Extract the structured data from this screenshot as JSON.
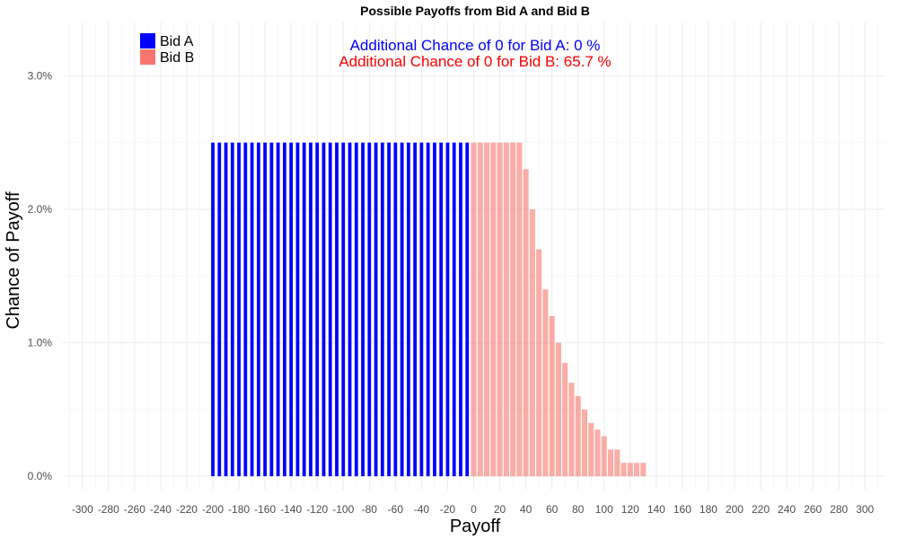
{
  "chart_data": {
    "type": "bar",
    "title": "Possible Payoffs from Bid A and Bid B",
    "xlabel": "Payoff",
    "ylabel": "Chance of Payoff",
    "xlim": [
      -315,
      315
    ],
    "ylim": [
      -0.001,
      0.034
    ],
    "x_ticks": [
      -300,
      -280,
      -260,
      -240,
      -220,
      -200,
      -180,
      -160,
      -140,
      -120,
      -100,
      -80,
      -60,
      -40,
      -20,
      0,
      20,
      40,
      60,
      80,
      100,
      120,
      140,
      160,
      180,
      200,
      220,
      240,
      260,
      280,
      300
    ],
    "y_ticks": [
      0.0,
      0.01,
      0.02,
      0.03
    ],
    "y_tick_labels": [
      "0.0%",
      "1.0%",
      "2.0%",
      "3.0%"
    ],
    "grid": true,
    "legend_position": "top-left",
    "series": [
      {
        "name": "Bid A",
        "color": "#0000ff",
        "x": [
          -200,
          -195,
          -190,
          -185,
          -180,
          -175,
          -170,
          -165,
          -160,
          -155,
          -150,
          -145,
          -140,
          -135,
          -130,
          -125,
          -120,
          -115,
          -110,
          -105,
          -100,
          -95,
          -90,
          -85,
          -80,
          -75,
          -70,
          -65,
          -60,
          -55,
          -50,
          -45,
          -40,
          -35,
          -30,
          -25,
          -20,
          -15,
          -10,
          -5
        ],
        "values": [
          0.025,
          0.025,
          0.025,
          0.025,
          0.025,
          0.025,
          0.025,
          0.025,
          0.025,
          0.025,
          0.025,
          0.025,
          0.025,
          0.025,
          0.025,
          0.025,
          0.025,
          0.025,
          0.025,
          0.025,
          0.025,
          0.025,
          0.025,
          0.025,
          0.025,
          0.025,
          0.025,
          0.025,
          0.025,
          0.025,
          0.025,
          0.025,
          0.025,
          0.025,
          0.025,
          0.025,
          0.025,
          0.025,
          0.025,
          0.025
        ]
      },
      {
        "name": "Bid B",
        "color": "#f8766d",
        "x": [
          0,
          5,
          10,
          15,
          20,
          25,
          30,
          35,
          40,
          45,
          50,
          55,
          60,
          65,
          70,
          75,
          80,
          85,
          90,
          95,
          100,
          105,
          110,
          115,
          120,
          125,
          130
        ],
        "values": [
          0.025,
          0.025,
          0.025,
          0.025,
          0.025,
          0.025,
          0.025,
          0.025,
          0.023,
          0.02,
          0.017,
          0.014,
          0.012,
          0.01,
          0.0085,
          0.007,
          0.006,
          0.005,
          0.004,
          0.0035,
          0.003,
          0.002,
          0.002,
          0.001,
          0.001,
          0.001,
          0.001
        ]
      }
    ],
    "annotations": [
      {
        "text": "Additional Chance of 0 for Bid A:  0 %",
        "color": "#0000ff"
      },
      {
        "text": "Additional Chance of 0 for Bid B:  65.7 %",
        "color": "#ff0000"
      }
    ]
  }
}
